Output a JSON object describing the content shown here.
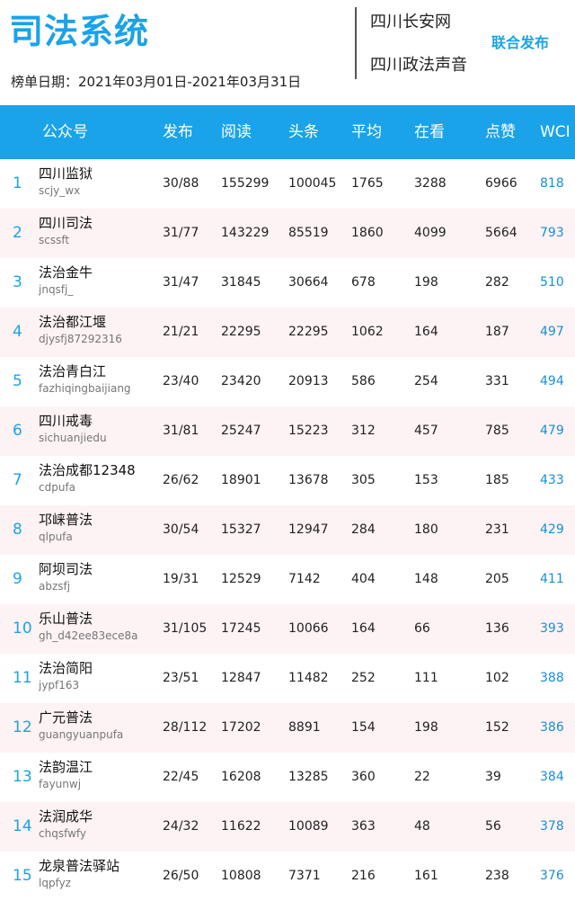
{
  "header": {
    "title": "司法系统",
    "date_label": "榜单日期：2021年03月01日-2021年03月31日",
    "publisher1": "四川长安网",
    "publisher2": "四川政法声音",
    "joint": "联合发布"
  },
  "columns": [
    "公众号",
    "发布",
    "阅读",
    "头条",
    "平均",
    "在看",
    "点赞",
    "WCI"
  ],
  "colors": {
    "accent": "#1aa3e8",
    "row_alt": "#fdf2f4",
    "wci": "#1a8fd4"
  },
  "rows": [
    {
      "rank": "1",
      "name": "四川监狱",
      "account": "scjy_wx",
      "publish": "30/88",
      "read": "155299",
      "headline": "100045",
      "avg": "1765",
      "watching": "3288",
      "likes": "6966",
      "wci": "818"
    },
    {
      "rank": "2",
      "name": "四川司法",
      "account": "scssft",
      "publish": "31/77",
      "read": "143229",
      "headline": "85519",
      "avg": "1860",
      "watching": "4099",
      "likes": "5664",
      "wci": "793"
    },
    {
      "rank": "3",
      "name": "法治金牛",
      "account": "jnqsfj_",
      "publish": "31/47",
      "read": "31845",
      "headline": "30664",
      "avg": "678",
      "watching": "198",
      "likes": "282",
      "wci": "510"
    },
    {
      "rank": "4",
      "name": "法治都江堰",
      "account": "djysfj87292316",
      "publish": "21/21",
      "read": "22295",
      "headline": "22295",
      "avg": "1062",
      "watching": "164",
      "likes": "187",
      "wci": "497"
    },
    {
      "rank": "5",
      "name": "法治青白江",
      "account": "fazhiqingbaijiang",
      "publish": "23/40",
      "read": "23420",
      "headline": "20913",
      "avg": "586",
      "watching": "254",
      "likes": "331",
      "wci": "494"
    },
    {
      "rank": "6",
      "name": "四川戒毒",
      "account": "sichuanjiedu",
      "publish": "31/81",
      "read": "25247",
      "headline": "15223",
      "avg": "312",
      "watching": "457",
      "likes": "785",
      "wci": "479"
    },
    {
      "rank": "7",
      "name": "法治成都12348",
      "account": "cdpufa",
      "publish": "26/62",
      "read": "18901",
      "headline": "13678",
      "avg": "305",
      "watching": "153",
      "likes": "185",
      "wci": "433"
    },
    {
      "rank": "8",
      "name": "邛崃普法",
      "account": "qlpufa",
      "publish": "30/54",
      "read": "15327",
      "headline": "12947",
      "avg": "284",
      "watching": "180",
      "likes": "231",
      "wci": "429"
    },
    {
      "rank": "9",
      "name": "阿坝司法",
      "account": "abzsfj",
      "publish": "19/31",
      "read": "12529",
      "headline": "7142",
      "avg": "404",
      "watching": "148",
      "likes": "205",
      "wci": "411"
    },
    {
      "rank": "10",
      "name": "乐山普法",
      "account": "gh_d42ee83ece8a",
      "publish": "31/105",
      "read": "17245",
      "headline": "10066",
      "avg": "164",
      "watching": "66",
      "likes": "136",
      "wci": "393"
    },
    {
      "rank": "11",
      "name": "法治简阳",
      "account": "jypf163",
      "publish": "23/51",
      "read": "12847",
      "headline": "11482",
      "avg": "252",
      "watching": "111",
      "likes": "102",
      "wci": "388"
    },
    {
      "rank": "12",
      "name": "广元普法",
      "account": "guangyuanpufa",
      "publish": "28/112",
      "read": "17202",
      "headline": "8891",
      "avg": "154",
      "watching": "198",
      "likes": "152",
      "wci": "386"
    },
    {
      "rank": "13",
      "name": "法韵温江",
      "account": "fayunwj",
      "publish": "22/45",
      "read": "16208",
      "headline": "13285",
      "avg": "360",
      "watching": "22",
      "likes": "39",
      "wci": "384"
    },
    {
      "rank": "14",
      "name": "法润成华",
      "account": "chqsfwfy",
      "publish": "24/32",
      "read": "11622",
      "headline": "10089",
      "avg": "363",
      "watching": "48",
      "likes": "56",
      "wci": "378"
    },
    {
      "rank": "15",
      "name": "龙泉普法驿站",
      "account": "lqpfyz",
      "publish": "26/50",
      "read": "10808",
      "headline": "7371",
      "avg": "216",
      "watching": "161",
      "likes": "238",
      "wci": "376"
    }
  ]
}
